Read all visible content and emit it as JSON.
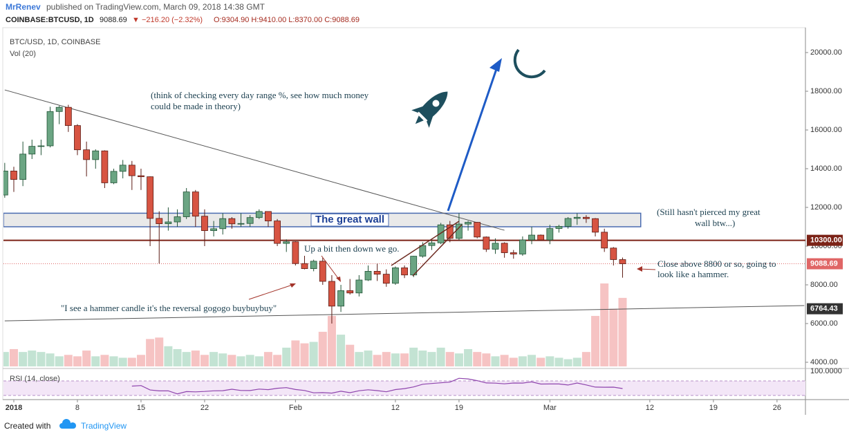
{
  "header": {
    "author": "MrRenev",
    "published": "published on TradingView.com, March 09, 2018 14:38 GMT",
    "symbol": "COINBASE:BTCUSD, 1D",
    "last": "9088.69",
    "arrow": "▼",
    "change": "−216.20 (−2.32%)",
    "ohlc": "O:9304.90 H:9410.00 L:8370.00 C:9088.69"
  },
  "footer": {
    "prefix": "Created with",
    "brand": "TradingView"
  },
  "chart_data": {
    "type": "candlestick",
    "title": "BTC/USD, 1D, COINBASE",
    "volume_title": "Vol (20)",
    "rsi_title": "RSI (14, close)",
    "rsi_label": "100.0000",
    "x": [
      "2017-12-31",
      "2018-01-01",
      "2018-01-02",
      "2018-01-03",
      "2018-01-04",
      "2018-01-05",
      "2018-01-06",
      "2018-01-07",
      "2018-01-08",
      "2018-01-09",
      "2018-01-10",
      "2018-01-11",
      "2018-01-12",
      "2018-01-13",
      "2018-01-14",
      "2018-01-15",
      "2018-01-16",
      "2018-01-17",
      "2018-01-18",
      "2018-01-19",
      "2018-01-20",
      "2018-01-21",
      "2018-01-22",
      "2018-01-23",
      "2018-01-24",
      "2018-01-25",
      "2018-01-26",
      "2018-01-27",
      "2018-01-28",
      "2018-01-29",
      "2018-01-30",
      "2018-01-31",
      "2018-02-01",
      "2018-02-02",
      "2018-02-03",
      "2018-02-04",
      "2018-02-05",
      "2018-02-06",
      "2018-02-07",
      "2018-02-08",
      "2018-02-09",
      "2018-02-10",
      "2018-02-11",
      "2018-02-12",
      "2018-02-13",
      "2018-02-14",
      "2018-02-15",
      "2018-02-16",
      "2018-02-17",
      "2018-02-18",
      "2018-02-19",
      "2018-02-20",
      "2018-02-21",
      "2018-02-22",
      "2018-02-23",
      "2018-02-24",
      "2018-02-25",
      "2018-02-26",
      "2018-02-27",
      "2018-02-28",
      "2018-03-01",
      "2018-03-02",
      "2018-03-03",
      "2018-03-04",
      "2018-03-05",
      "2018-03-06",
      "2018-03-07",
      "2018-03-08",
      "2018-03-09"
    ],
    "open": [
      12640,
      13880,
      13444,
      14755,
      15156,
      15180,
      16954,
      17172,
      16228,
      14976,
      14469,
      14920,
      13271,
      13862,
      14184,
      13637,
      13584,
      11432,
      11158,
      11250,
      11517,
      12801,
      11546,
      10800,
      10900,
      11422,
      11152,
      11170,
      11476,
      11790,
      11300,
      10140,
      10225,
      9100,
      8837,
      9220,
      8180,
      6900,
      7700,
      7580,
      8250,
      8700,
      8550,
      8080,
      8880,
      8510,
      9480,
      10030,
      10170,
      11100,
      10400,
      11140,
      11230,
      10470,
      9840,
      10150,
      9660,
      9590,
      10320,
      10570,
      10320,
      10910,
      11020,
      11430,
      11490,
      11420,
      10720,
      9900,
      9304.9
    ],
    "high": [
      14300,
      14100,
      15400,
      15500,
      15500,
      17200,
      17250,
      17300,
      16300,
      15400,
      15000,
      14950,
      14000,
      14450,
      14400,
      14000,
      13600,
      11800,
      12000,
      11900,
      13000,
      12900,
      11900,
      11300,
      11700,
      11500,
      11700,
      11600,
      11900,
      11800,
      11400,
      10350,
      10250,
      9500,
      9300,
      9400,
      8500,
      8000,
      8300,
      8500,
      9000,
      9100,
      8800,
      8950,
      9000,
      9500,
      10200,
      10300,
      11200,
      11300,
      11700,
      11300,
      11250,
      10500,
      10400,
      10200,
      9800,
      10500,
      11000,
      10600,
      11100,
      11100,
      11500,
      11700,
      11600,
      11450,
      10900,
      9950,
      9410
    ],
    "low": [
      12500,
      12800,
      13100,
      14500,
      14700,
      15100,
      16300,
      15900,
      14700,
      13600,
      14000,
      13000,
      13200,
      13500,
      12900,
      12900,
      10000,
      9100,
      10800,
      11000,
      11400,
      11000,
      10000,
      10500,
      10600,
      10900,
      11000,
      11000,
      11400,
      11000,
      10000,
      9700,
      9000,
      8800,
      8700,
      8000,
      6000,
      6600,
      7500,
      7400,
      8200,
      8200,
      7900,
      8000,
      8350,
      8400,
      9400,
      9800,
      10100,
      10200,
      10300,
      10800,
      10400,
      9700,
      9600,
      9400,
      9350,
      9500,
      10100,
      10300,
      10100,
      10700,
      10900,
      11100,
      11200,
      10500,
      9700,
      9000,
      8370
    ],
    "close": [
      13880,
      13444,
      14755,
      15156,
      15180,
      16954,
      17172,
      16228,
      14976,
      14469,
      14920,
      13271,
      13862,
      14184,
      13637,
      13584,
      11432,
      11158,
      11250,
      11517,
      12801,
      11546,
      10800,
      10900,
      11422,
      11152,
      11170,
      11476,
      11790,
      11300,
      10140,
      10225,
      9100,
      8837,
      9220,
      8180,
      6900,
      7700,
      7580,
      8250,
      8700,
      8550,
      8080,
      8880,
      8510,
      9480,
      10030,
      10170,
      11100,
      10400,
      11140,
      11230,
      10470,
      9840,
      10150,
      9660,
      9590,
      10320,
      10570,
      10320,
      10910,
      11020,
      11430,
      11490,
      11420,
      10720,
      9900,
      9304.9,
      9088.69
    ],
    "volume": [
      20,
      24,
      20,
      22,
      20,
      18,
      14,
      16,
      14,
      22,
      14,
      16,
      14,
      12,
      12,
      16,
      38,
      40,
      28,
      24,
      20,
      22,
      16,
      20,
      18,
      16,
      14,
      16,
      14,
      20,
      16,
      26,
      36,
      32,
      34,
      48,
      70,
      44,
      30,
      20,
      22,
      16,
      20,
      18,
      18,
      26,
      22,
      20,
      26,
      20,
      18,
      24,
      20,
      18,
      14,
      16,
      12,
      14,
      16,
      12,
      14,
      12,
      10,
      12,
      20,
      70,
      115,
      80,
      95
    ],
    "up_color": "#6ba583",
    "down_color": "#d75442",
    "up_volume_color": "#c3e3d3",
    "down_volume_color": "#f6c3c3",
    "xlim": [
      "2017-12-30",
      "2018-03-29"
    ],
    "xticks": [
      {
        "value": "2018-01-01",
        "label": "2018"
      },
      {
        "value": "2018-01-08",
        "label": "8"
      },
      {
        "value": "2018-01-15",
        "label": "15"
      },
      {
        "value": "2018-01-22",
        "label": "22"
      },
      {
        "value": "2018-02-01",
        "label": "Feb"
      },
      {
        "value": "2018-02-12",
        "label": "12"
      },
      {
        "value": "2018-02-19",
        "label": "19"
      },
      {
        "value": "2018-03-01",
        "label": "Mar"
      },
      {
        "value": "2018-03-12",
        "label": "12"
      },
      {
        "value": "2018-03-19",
        "label": "19"
      },
      {
        "value": "2018-03-26",
        "label": "26"
      }
    ],
    "ylim": [
      3786,
      21286
    ],
    "yticks": [
      {
        "value": 4000,
        "label": "4000.00"
      },
      {
        "value": 6000,
        "label": "6000.00"
      },
      {
        "value": 8000,
        "label": "8000.00"
      },
      {
        "value": 10000,
        "label": "10000.00"
      },
      {
        "value": 12000,
        "label": "12000.00"
      },
      {
        "value": 14000,
        "label": "14000.00"
      },
      {
        "value": 16000,
        "label": "16000.00"
      },
      {
        "value": 18000,
        "label": "18000.00"
      },
      {
        "value": 20000,
        "label": "20000.00"
      }
    ],
    "resistance": {
      "value": 10300,
      "label": "10300.00",
      "color": "#7b2216"
    },
    "last_price": {
      "value": 9088.69,
      "label": "9088.69",
      "color": "#e06666"
    },
    "trend_label": {
      "value": 6764.43,
      "label": "6764.43"
    },
    "zone": {
      "low": 11000,
      "high": 11700,
      "end": "2018-03-11",
      "label": "The great wall"
    },
    "trendlines": [
      {
        "x": [
          "2017-12-31",
          "2018-02-24"
        ],
        "values": [
          18070,
          10820
        ]
      },
      {
        "x": [
          "2017-12-31",
          "2018-03-29"
        ],
        "values": [
          6140,
          6930
        ]
      }
    ],
    "annotations": [
      "(think of checking every day range %, see how much money",
      "could be made in theory)",
      "(Still hasn't pierced my great",
      "wall btw...)",
      "Up a bit then down we go.",
      "\"I see a hammer candle it's the reversal gogogo buybuybuy\"",
      "Close above 8800 or so, going to",
      "look like a hammer."
    ]
  }
}
